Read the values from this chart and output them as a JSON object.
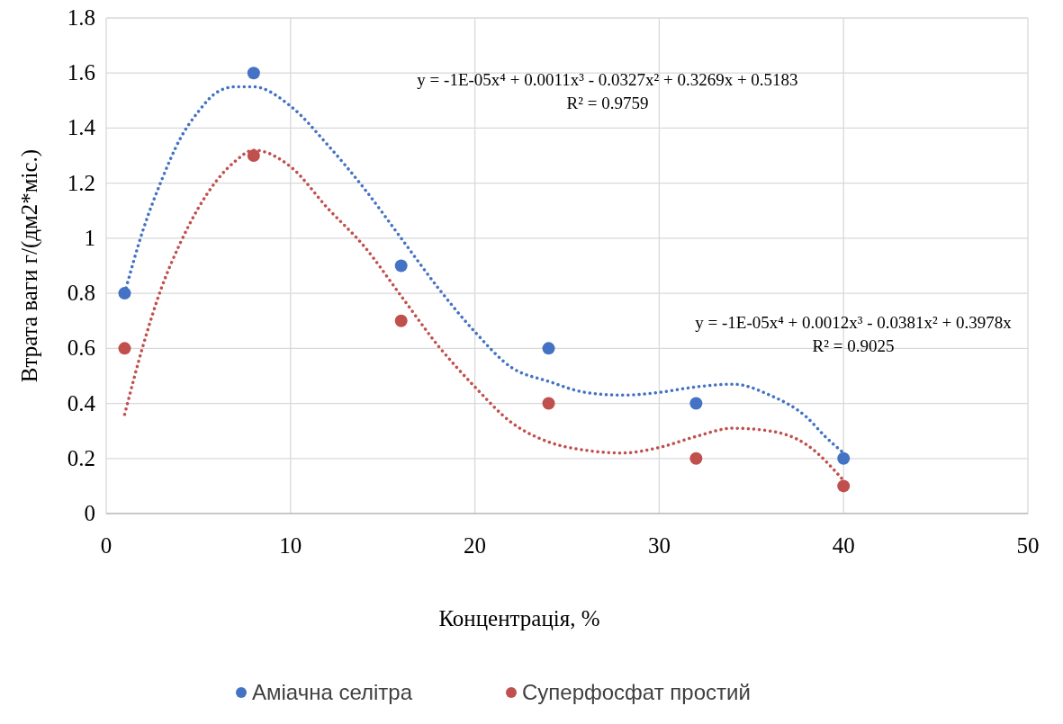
{
  "chart_data": {
    "type": "scatter",
    "xlabel": "Концентрація, %",
    "ylabel": "Втрата ваги г/(дм2*міс.)",
    "xlim": [
      0,
      50
    ],
    "xticks": [
      0,
      10,
      20,
      30,
      40,
      50
    ],
    "ylim": [
      0,
      1.8
    ],
    "yticks": [
      0,
      0.2,
      0.4,
      0.6,
      0.8,
      1,
      1.2,
      1.4,
      1.6,
      1.8
    ],
    "grid": true,
    "legend": "bottom",
    "marker": "circle",
    "x": [
      1,
      8,
      16,
      24,
      32,
      40
    ],
    "series": [
      {
        "name": "Аміачна селітра",
        "color": "#4472c4",
        "values": [
          0.8,
          1.6,
          0.9,
          0.6,
          0.4,
          0.2
        ]
      },
      {
        "name": "Суперфосфат простий",
        "color": "#c0504d",
        "values": [
          0.6,
          1.3,
          0.7,
          0.4,
          0.2,
          0.1
        ]
      },
      {
        "type": "line",
        "line_style": "dotted",
        "marker": "none",
        "color": "#4472c4",
        "x": [
          1,
          2,
          3,
          4,
          5,
          6,
          7,
          8,
          10,
          12,
          14,
          16,
          18,
          20,
          22,
          24,
          26,
          28,
          30,
          32,
          34,
          36,
          38,
          39,
          40
        ],
        "values": [
          0.8,
          1.03,
          1.21,
          1.36,
          1.46,
          1.53,
          1.55,
          1.55,
          1.48,
          1.34,
          1.18,
          1.0,
          0.82,
          0.66,
          0.53,
          0.48,
          0.44,
          0.43,
          0.44,
          0.46,
          0.47,
          0.43,
          0.35,
          0.28,
          0.22
        ]
      },
      {
        "type": "line",
        "line_style": "dotted",
        "marker": "none",
        "color": "#c0504d",
        "x": [
          1,
          2,
          3,
          4,
          5,
          6,
          7,
          8,
          10,
          12,
          14,
          16,
          18,
          20,
          22,
          24,
          26,
          28,
          30,
          32,
          34,
          36,
          38,
          40
        ],
        "values": [
          0.36,
          0.61,
          0.82,
          0.98,
          1.11,
          1.21,
          1.28,
          1.32,
          1.26,
          1.11,
          0.97,
          0.79,
          0.61,
          0.46,
          0.33,
          0.26,
          0.23,
          0.22,
          0.24,
          0.28,
          0.31,
          0.3,
          0.25,
          0.12
        ]
      }
    ],
    "annotations": [
      "y = -1E-05x⁴ + 0.0011x³ - 0.0327x² + 0.3269x + 0.5183",
      "R² = 0.9759",
      "y = -1E-05x⁴ + 0.0012x³ - 0.0381x² + 0.3978x",
      "R² = 0.9025"
    ]
  }
}
